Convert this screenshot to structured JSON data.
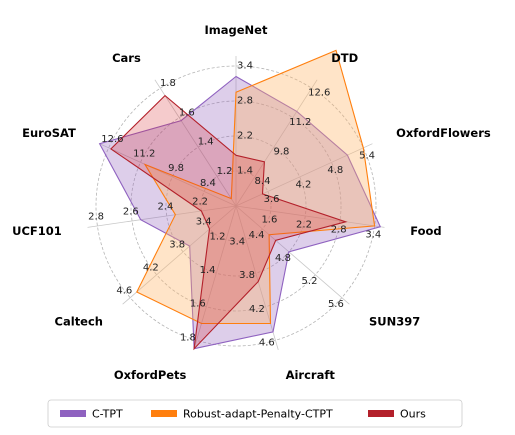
{
  "chart_data": {
    "type": "radar",
    "axes": [
      {
        "label": "ImageNet",
        "ticks": [
          "1.4",
          "2.2",
          "2.8",
          "3.4"
        ]
      },
      {
        "label": "DTD",
        "ticks": [
          "8.4",
          "9.8",
          "11.2",
          "12.6"
        ]
      },
      {
        "label": "OxfordFlowers",
        "ticks": [
          "3.6",
          "4.2",
          "4.8",
          "5.4"
        ]
      },
      {
        "label": "Food",
        "ticks": [
          "1.6",
          "2.2",
          "2.8",
          "3.4"
        ]
      },
      {
        "label": "SUN397",
        "ticks": [
          "4.4",
          "4.8",
          "5.2",
          "5.6"
        ]
      },
      {
        "label": "Aircraft",
        "ticks": [
          "3.4",
          "3.8",
          "4.2",
          "4.6"
        ]
      },
      {
        "label": "OxfordPets",
        "ticks": [
          "1.2",
          "1.4",
          "1.6",
          "1.8"
        ]
      },
      {
        "label": "Caltech",
        "ticks": [
          "3.4",
          "3.8",
          "4.2",
          "4.6"
        ]
      },
      {
        "label": "UCF101",
        "ticks": [
          "2.2",
          "2.4",
          "2.6",
          "2.8"
        ]
      },
      {
        "label": "EuroSAT",
        "ticks": [
          "8.4",
          "9.8",
          "11.2",
          "12.6"
        ]
      },
      {
        "label": "Cars",
        "ticks": [
          "1.2",
          "1.4",
          "1.6",
          "1.8"
        ]
      }
    ],
    "series": [
      {
        "name": "C-TPT",
        "color": "#8f62c0",
        "fill": "rgba(148,103,189,0.32)",
        "values": [
          3.2,
          11.5,
          5.1,
          3.5,
          4.8,
          4.5,
          1.85,
          3.7,
          2.55,
          13.0,
          1.58
        ]
      },
      {
        "name": "Robust-adapt-Penalty-CTPT",
        "color": "#ff7f0e",
        "fill": "rgba(255,179,102,0.36)",
        "values": [
          2.9,
          14.4,
          5.4,
          3.4,
          4.5,
          4.4,
          1.7,
          4.5,
          2.35,
          11.0,
          1.05
        ]
      },
      {
        "name": "Ours",
        "color": "#b3202a",
        "fill": "rgba(214,39,40,0.24)",
        "values": [
          1.7,
          9.1,
          3.5,
          2.9,
          4.6,
          3.9,
          1.85,
          3.4,
          2.2,
          12.5,
          1.75
        ]
      }
    ],
    "legend_position": "bottom",
    "grid": true
  }
}
